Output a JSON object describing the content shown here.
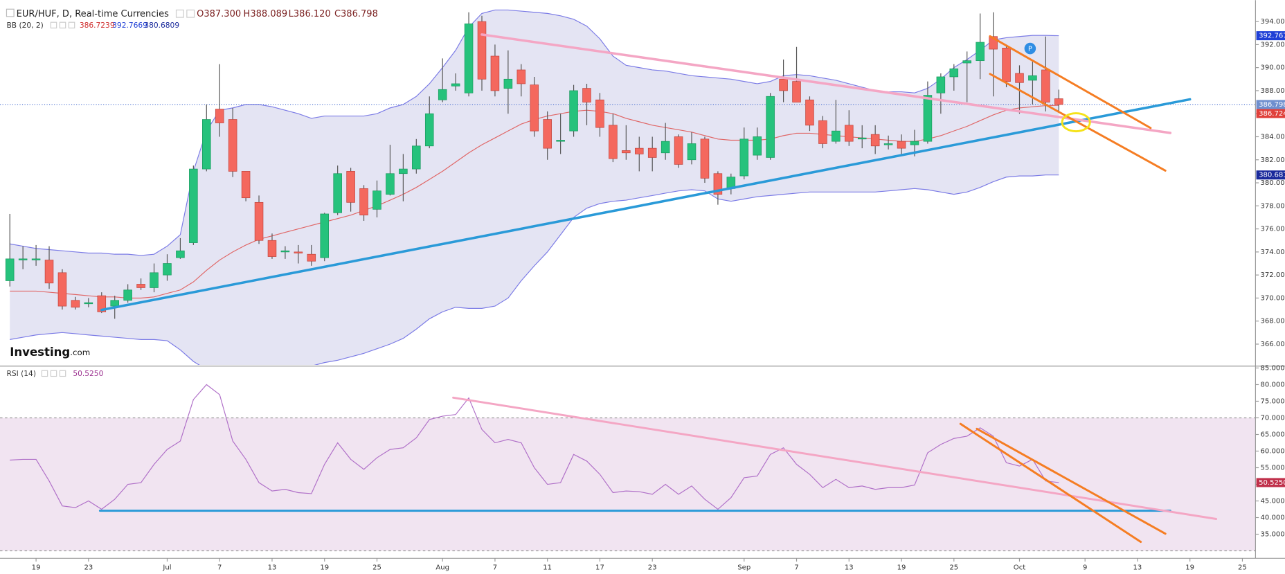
{
  "chart_data": {
    "type": "candlestick",
    "title": "EUR/HUF, D, Real-time Currencies",
    "last_bar_labels": [
      "O387.300",
      "H388.089",
      "L386.120",
      "C386.798"
    ],
    "watermark": [
      "Investing",
      ".com"
    ],
    "up_color": "#26c27c",
    "down_color": "#f4685e",
    "xlim": [
      -0.75,
      95
    ],
    "xticks": [
      {
        "value": 2,
        "label": "19"
      },
      {
        "value": 6,
        "label": "23"
      },
      {
        "value": 12,
        "label": "Jul"
      },
      {
        "value": 16,
        "label": "7"
      },
      {
        "value": 20,
        "label": "13"
      },
      {
        "value": 24,
        "label": "19"
      },
      {
        "value": 28,
        "label": "25"
      },
      {
        "value": 33,
        "label": "Aug"
      },
      {
        "value": 37,
        "label": "7"
      },
      {
        "value": 41,
        "label": "11"
      },
      {
        "value": 45,
        "label": "17"
      },
      {
        "value": 49,
        "label": "23"
      },
      {
        "value": 56,
        "label": "Sep"
      },
      {
        "value": 60,
        "label": "7"
      },
      {
        "value": 64,
        "label": "13"
      },
      {
        "value": 68,
        "label": "19"
      },
      {
        "value": 72,
        "label": "25"
      },
      {
        "value": 77,
        "label": "Oct"
      },
      {
        "value": 82,
        "label": "9"
      },
      {
        "value": 86,
        "label": "13"
      },
      {
        "value": 90,
        "label": "19"
      },
      {
        "value": 94,
        "label": "25"
      }
    ],
    "ylim": [
      364.2,
      395.5
    ],
    "yticks": [
      {
        "value": 366,
        "label": "366.000"
      },
      {
        "value": 368,
        "label": "368.000"
      },
      {
        "value": 370,
        "label": "370.000"
      },
      {
        "value": 372,
        "label": "372.000"
      },
      {
        "value": 374,
        "label": "374.000"
      },
      {
        "value": 376,
        "label": "376.000"
      },
      {
        "value": 378,
        "label": "378.000"
      },
      {
        "value": 380,
        "label": "380.000"
      },
      {
        "value": 382,
        "label": "382.000"
      },
      {
        "value": 384,
        "label": "384.000"
      },
      {
        "value": 386,
        "label": "386.000"
      },
      {
        "value": 388,
        "label": "388.000"
      },
      {
        "value": 390,
        "label": "390.000"
      },
      {
        "value": 392,
        "label": "392.000"
      },
      {
        "value": 394,
        "label": "394.000"
      }
    ],
    "open": [
      371.5,
      373.3,
      373.3,
      373.3,
      372.2,
      369.8,
      369.5,
      370.2,
      369.3,
      369.8,
      371.2,
      370.9,
      372,
      373.5,
      374.8,
      381.2,
      386.4,
      385.5,
      381,
      378.3,
      375,
      374,
      374,
      373.8,
      373.5,
      377.4,
      381,
      379.5,
      377.7,
      379,
      380.8,
      381.2,
      383.2,
      387.2,
      388.4,
      387.8,
      394,
      391,
      388.2,
      389.8,
      388.5,
      385.5,
      383.6,
      384.5,
      388.2,
      387.2,
      385,
      382.8,
      383,
      383,
      382.6,
      384,
      382,
      383.8,
      380.8,
      379.5,
      380.6,
      382.4,
      382.2,
      389,
      388.8,
      387.2,
      385.4,
      383.6,
      385,
      383.8,
      384.2,
      383.3,
      383.6,
      383.3,
      383.6,
      387.8,
      389.2,
      390.4,
      390.6,
      392.7,
      391.7,
      389.5,
      388.9,
      389.8,
      387.3
    ],
    "high": [
      377.3,
      374.5,
      374.6,
      374.5,
      372.5,
      370.1,
      370,
      370.5,
      370.2,
      371.2,
      371.7,
      373,
      373.8,
      375.2,
      381.5,
      386.8,
      390.3,
      386.5,
      381,
      378.9,
      375.6,
      374.5,
      374.6,
      374.6,
      377.4,
      381.5,
      381.3,
      379.8,
      380.2,
      383.3,
      382.5,
      383.8,
      387.5,
      390.8,
      389.5,
      394.8,
      394.5,
      392,
      391.5,
      390.3,
      389.2,
      386.2,
      386,
      388.5,
      388.6,
      387.8,
      386,
      385,
      384,
      384,
      385.2,
      384.2,
      384.4,
      384,
      381,
      380.8,
      384.8,
      384.8,
      387.8,
      390.7,
      391.8,
      387.5,
      385.8,
      387.2,
      386.3,
      385,
      385,
      384.1,
      384.2,
      384.6,
      388.8,
      389.5,
      390.3,
      391.4,
      394.7,
      394.8,
      392,
      390.2,
      390.6,
      392.7,
      388.089
    ],
    "low": [
      371,
      372.5,
      372.8,
      370.8,
      369,
      369,
      369.2,
      368.7,
      368.2,
      369.6,
      370.7,
      370.5,
      371.5,
      373.4,
      374.6,
      381,
      384,
      380.5,
      378.4,
      374.7,
      373.4,
      373.4,
      373,
      372.8,
      373.2,
      377.2,
      377.5,
      376.7,
      377,
      378.9,
      378.4,
      380.8,
      383,
      387,
      388,
      387.5,
      388,
      387.5,
      386,
      387.5,
      384,
      382,
      382.5,
      384,
      385,
      384,
      381.8,
      382,
      381,
      381,
      382,
      381.3,
      381.6,
      380,
      378.1,
      379,
      380.3,
      382,
      382,
      387,
      387,
      384.5,
      383,
      383.4,
      383.2,
      383,
      382.5,
      382.9,
      382.5,
      382.3,
      383.4,
      386,
      388,
      387,
      389,
      387.5,
      388.3,
      386,
      386.8,
      386.2,
      386.12
    ],
    "close": [
      373.4,
      373.4,
      373.4,
      371.3,
      369.3,
      369.2,
      369.6,
      368.8,
      369.8,
      370.7,
      370.9,
      372.2,
      373,
      374.1,
      381.2,
      385.5,
      385.2,
      381,
      378.7,
      375,
      373.6,
      374.1,
      373.9,
      373.2,
      377.3,
      380.8,
      378.3,
      377.2,
      379.3,
      380.8,
      381.2,
      383.2,
      386,
      388.1,
      388.6,
      393.8,
      389,
      388,
      389,
      388.6,
      384.5,
      383,
      383.7,
      388,
      387,
      384.8,
      382.1,
      382.6,
      382.5,
      382.2,
      383.6,
      381.6,
      383.4,
      380.4,
      379,
      380.5,
      383.8,
      384,
      387.5,
      388,
      387,
      385,
      383.4,
      384.5,
      383.6,
      383.9,
      383.2,
      383.4,
      383,
      383.6,
      387.6,
      389.2,
      389.9,
      390.6,
      392.2,
      391.6,
      388.8,
      388.7,
      389.3,
      387,
      386.798
    ],
    "bollinger": {
      "name": "BB (20, 2)",
      "fill": "#e4e4f3",
      "middle": {
        "color": "#e06666",
        "last_labels": [
          "386.7239",
          "386.724"
        ],
        "values": [
          370.6,
          370.6,
          370.6,
          370.5,
          370.4,
          370.3,
          370.2,
          370.1,
          370.1,
          370,
          370,
          370.1,
          370.4,
          370.7,
          371.4,
          372.4,
          373.3,
          374,
          374.6,
          375.1,
          375.4,
          375.7,
          376,
          376.3,
          376.6,
          376.9,
          377.2,
          377.6,
          378,
          378.5,
          379,
          379.6,
          380.3,
          381,
          381.8,
          382.6,
          383.3,
          383.9,
          384.5,
          385.1,
          385.5,
          385.8,
          386,
          386.2,
          386.3,
          386.2,
          386,
          385.6,
          385.3,
          385,
          384.8,
          384.6,
          384.4,
          384.1,
          383.8,
          383.7,
          383.7,
          383.7,
          383.8,
          384.1,
          384.3,
          384.3,
          384.2,
          384.1,
          384,
          383.9,
          383.8,
          383.7,
          383.6,
          383.6,
          383.8,
          384.1,
          384.5,
          384.9,
          385.4,
          385.9,
          386.3,
          386.5,
          386.6,
          386.7,
          386.7239
        ]
      },
      "upper": {
        "color": "#7b7be6",
        "label_color": "#1f3fd6",
        "last_labels": [
          "392.7669",
          "392.767"
        ],
        "values": [
          374.7,
          374.5,
          374.3,
          374.2,
          374.1,
          374,
          373.9,
          373.9,
          373.8,
          373.8,
          373.7,
          373.8,
          374.5,
          375.5,
          381,
          384.5,
          386.3,
          386.5,
          386.8,
          386.8,
          386.6,
          386.3,
          386,
          385.6,
          385.8,
          385.8,
          385.8,
          385.8,
          386,
          386.5,
          386.8,
          387.5,
          388.6,
          390,
          391.5,
          393.5,
          394.7,
          395,
          395,
          394.9,
          394.8,
          394.7,
          394.5,
          394.2,
          393.6,
          392.5,
          391,
          390.2,
          390,
          389.8,
          389.7,
          389.5,
          389.3,
          389.2,
          389.1,
          389,
          388.8,
          388.6,
          388.8,
          389.3,
          389.4,
          389.3,
          389.1,
          388.9,
          388.6,
          388.3,
          388,
          387.9,
          387.9,
          387.8,
          388.2,
          389,
          390,
          390.7,
          391.5,
          392.4,
          392.6,
          392.7,
          392.8,
          392.8,
          392.7669
        ]
      },
      "lower": {
        "color": "#7b7be6",
        "label_color": "#1a2a9c",
        "last_labels": [
          "380.6809",
          "380.681"
        ],
        "values": [
          366.4,
          366.6,
          366.8,
          366.9,
          367,
          366.9,
          366.8,
          366.7,
          366.6,
          366.5,
          366.4,
          366.4,
          366.3,
          365.5,
          364.5,
          363.8,
          363.5,
          363.5,
          363.6,
          363.7,
          363.8,
          363.8,
          363.9,
          364.1,
          364.4,
          364.6,
          364.9,
          365.2,
          365.6,
          366,
          366.5,
          367.3,
          368.2,
          368.8,
          369.2,
          369.1,
          369.1,
          369.3,
          370,
          371.5,
          372.8,
          374,
          375.5,
          377,
          377.8,
          378.2,
          378.4,
          378.5,
          378.7,
          378.9,
          379.1,
          379.3,
          379.4,
          379.3,
          378.6,
          378.4,
          378.6,
          378.8,
          378.9,
          379,
          379.1,
          379.2,
          379.2,
          379.2,
          379.2,
          379.2,
          379.2,
          379.3,
          379.4,
          379.5,
          379.4,
          379.2,
          379,
          379.2,
          379.6,
          380.1,
          380.5,
          380.6,
          380.6,
          380.68,
          380.6809
        ]
      }
    },
    "rsi": {
      "name": "RSI (14)",
      "color": "#b070c8",
      "label_color": "#c0304a",
      "last_labels": [
        "50.5250",
        "50.5250"
      ],
      "ylim": [
        28,
        85.2
      ],
      "yticks": [
        {
          "value": 35,
          "label": "35.0000"
        },
        {
          "value": 40,
          "label": "40.0000"
        },
        {
          "value": 45,
          "label": "45.0000"
        },
        {
          "value": 50,
          "label": "50.0000"
        },
        {
          "value": 55,
          "label": "55.0000"
        },
        {
          "value": 60,
          "label": "60.0000"
        },
        {
          "value": 65,
          "label": "65.0000"
        },
        {
          "value": 70,
          "label": "70.0000"
        },
        {
          "value": 75,
          "label": "75.0000"
        },
        {
          "value": 80,
          "label": "80.0000"
        },
        {
          "value": 85,
          "label": "85.0000"
        }
      ],
      "bands": [
        70,
        30
      ],
      "values": [
        57.3,
        57.5,
        57.5,
        51,
        43.5,
        43,
        45,
        42.5,
        45.5,
        50,
        50.5,
        56,
        60.5,
        63,
        75.5,
        80,
        77,
        63,
        57.5,
        50.5,
        48,
        48.5,
        47.5,
        47.2,
        56,
        62.5,
        57.5,
        54.5,
        58,
        60.5,
        61,
        64,
        69.5,
        70.5,
        71,
        76,
        66.5,
        62.5,
        63.5,
        62.5,
        55,
        50,
        50.5,
        59,
        57,
        53,
        47.5,
        48,
        47.8,
        47,
        50,
        47,
        49.5,
        45.5,
        42.5,
        46,
        52,
        52.5,
        59,
        61,
        56,
        53,
        49,
        51.5,
        49,
        49.5,
        48.5,
        49,
        49,
        49.8,
        59.5,
        62,
        63.8,
        64.5,
        67,
        64.5,
        56.5,
        55.5,
        57.5,
        51,
        50.525
      ]
    }
  }
}
